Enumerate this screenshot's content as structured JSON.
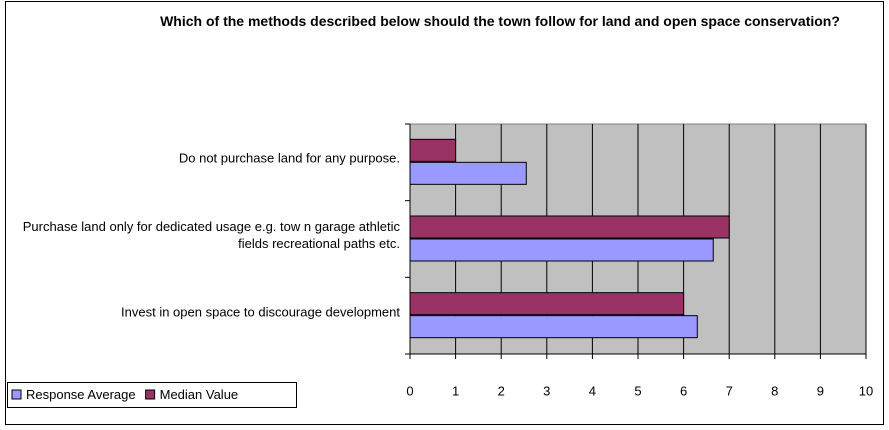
{
  "chart_data": {
    "type": "hbar",
    "title": "Which of the methods described below should the town follow for land and open space conservation?",
    "categories": [
      "Do not purchase land for any purpose.",
      "Purchase land only for dedicated usage e.g. tow n garage athletic fields recreational paths etc.",
      "Invest in open space to discourage development"
    ],
    "series": [
      {
        "name": "Response Average",
        "color": "#9999ff",
        "values": [
          2.55,
          6.65,
          6.3
        ]
      },
      {
        "name": "Median Value",
        "color": "#993366",
        "values": [
          1,
          7,
          6
        ]
      }
    ],
    "xlim": [
      0,
      10
    ],
    "xticks": [
      0,
      1,
      2,
      3,
      4,
      5,
      6,
      7,
      8,
      9,
      10
    ],
    "grid": true,
    "legend": "bottom-left"
  }
}
